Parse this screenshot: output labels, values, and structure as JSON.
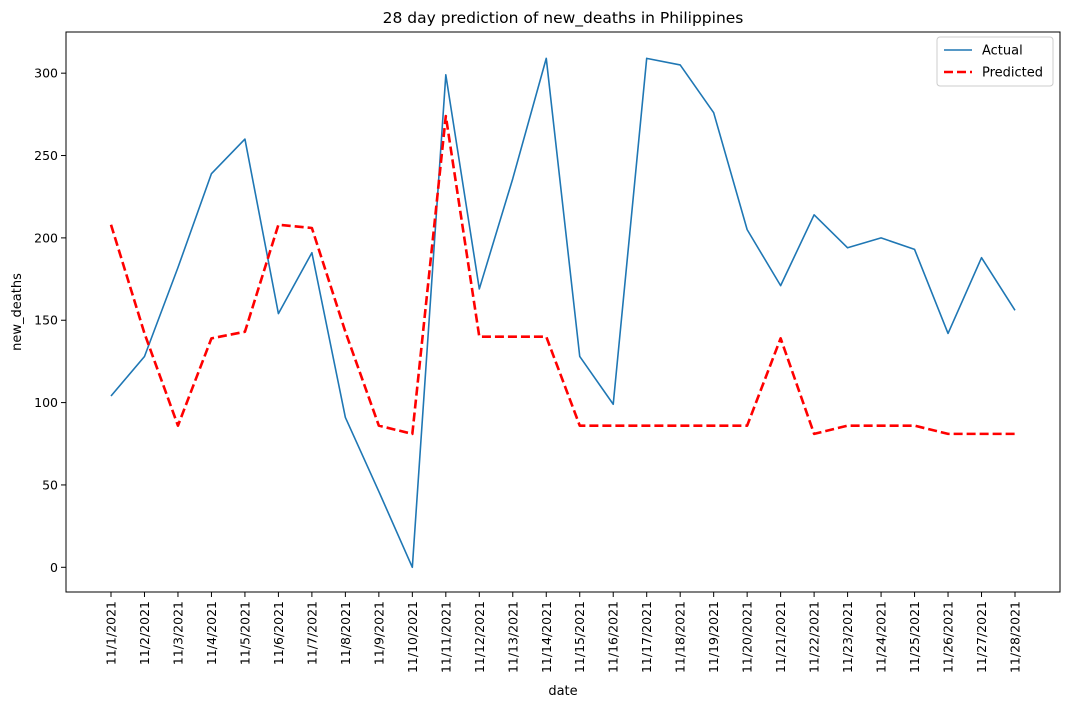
{
  "chart_data": {
    "type": "line",
    "title": "28 day prediction of new_deaths in Philippines",
    "xlabel": "date",
    "ylabel": "new_deaths",
    "ylim": [
      -15,
      325
    ],
    "yticks": [
      0,
      50,
      100,
      150,
      200,
      250,
      300
    ],
    "categories": [
      "11/1/2021",
      "11/2/2021",
      "11/3/2021",
      "11/4/2021",
      "11/5/2021",
      "11/6/2021",
      "11/7/2021",
      "11/8/2021",
      "11/9/2021",
      "11/10/2021",
      "11/11/2021",
      "11/12/2021",
      "11/13/2021",
      "11/14/2021",
      "11/15/2021",
      "11/16/2021",
      "11/17/2021",
      "11/18/2021",
      "11/19/2021",
      "11/20/2021",
      "11/21/2021",
      "11/22/2021",
      "11/23/2021",
      "11/24/2021",
      "11/25/2021",
      "11/26/2021",
      "11/27/2021",
      "11/28/2021"
    ],
    "legend_position": "top-right",
    "grid": false,
    "series": [
      {
        "name": "Actual",
        "color": "#1f77b4",
        "style": "solid",
        "values": [
          104,
          128,
          182,
          239,
          260,
          154,
          191,
          91,
          46,
          0,
          299,
          169,
          236,
          309,
          128,
          99,
          309,
          305,
          276,
          205,
          171,
          214,
          194,
          200,
          193,
          142,
          188,
          156
        ]
      },
      {
        "name": "Predicted",
        "color": "#ff0000",
        "style": "dashed",
        "values": [
          208,
          142,
          86,
          139,
          143,
          208,
          206,
          143,
          86,
          81,
          274,
          140,
          140,
          140,
          86,
          86,
          86,
          86,
          86,
          86,
          139,
          81,
          86,
          86,
          86,
          81,
          81,
          81
        ]
      }
    ]
  }
}
